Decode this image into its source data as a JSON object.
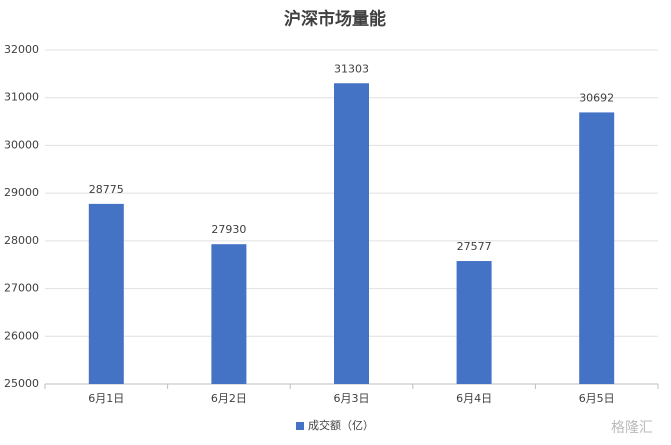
{
  "chart_data": {
    "type": "bar",
    "title": "沪深市场量能",
    "categories": [
      "6月1日",
      "6月2日",
      "6月3日",
      "6月4日",
      "6月5日"
    ],
    "series": [
      {
        "name": "成交额（亿）",
        "color": "#4472c4",
        "values": [
          28775,
          27930,
          31303,
          27577,
          30692
        ]
      }
    ],
    "ylim": [
      25000,
      32000
    ],
    "yticks": [
      25000,
      26000,
      27000,
      28000,
      29000,
      30000,
      31000,
      32000
    ],
    "grid": true,
    "legend": "bottom",
    "watermark": "格隆汇"
  }
}
